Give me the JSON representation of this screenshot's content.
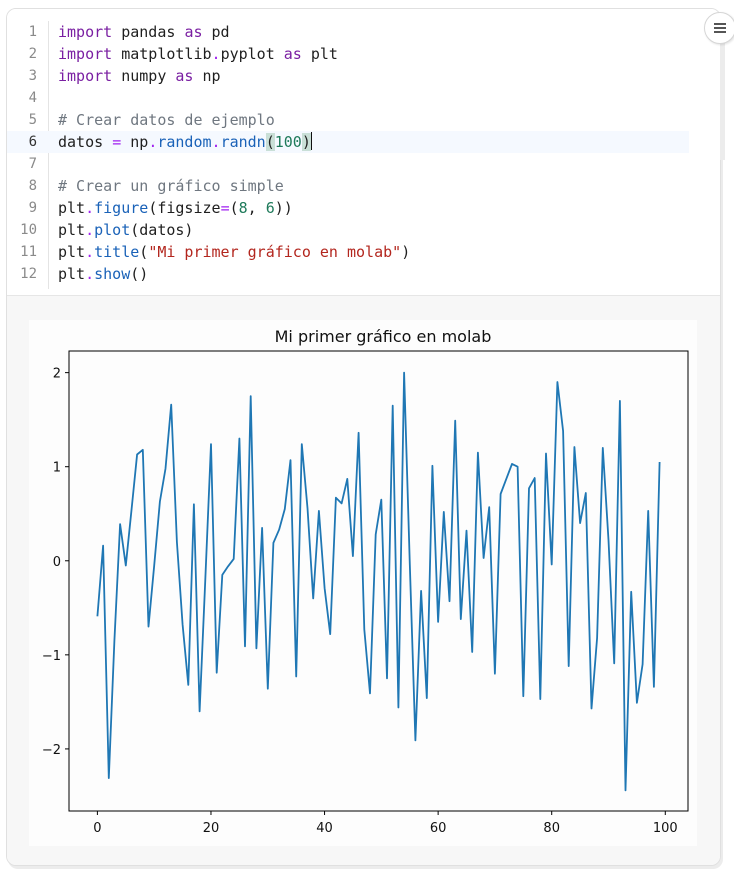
{
  "notebook": {
    "cell": {
      "menu_button": {
        "icon": "hamburger-menu-icon"
      },
      "active_line": 6,
      "lines": [
        {
          "n": "1",
          "tokens": [
            [
              "kw",
              "import"
            ],
            [
              "t",
              " pandas "
            ],
            [
              "kw",
              "as"
            ],
            [
              "t",
              " pd"
            ]
          ]
        },
        {
          "n": "2",
          "tokens": [
            [
              "kw",
              "import"
            ],
            [
              "t",
              " matplotlib"
            ],
            [
              "op",
              "."
            ],
            [
              "t",
              "pyplot "
            ],
            [
              "kw",
              "as"
            ],
            [
              "t",
              " plt"
            ]
          ]
        },
        {
          "n": "3",
          "tokens": [
            [
              "kw",
              "import"
            ],
            [
              "t",
              " numpy "
            ],
            [
              "kw",
              "as"
            ],
            [
              "t",
              " np"
            ]
          ]
        },
        {
          "n": "4",
          "tokens": []
        },
        {
          "n": "5",
          "tokens": [
            [
              "cm",
              "# Crear datos de ejemplo"
            ]
          ]
        },
        {
          "n": "6",
          "tokens": [
            [
              "t",
              "datos "
            ],
            [
              "op",
              "="
            ],
            [
              "t",
              " np"
            ],
            [
              "op",
              "."
            ],
            [
              "fn",
              "random"
            ],
            [
              "op",
              "."
            ],
            [
              "fn",
              "randn"
            ],
            [
              "bh",
              "("
            ],
            [
              "num",
              "100"
            ],
            [
              "bh",
              ")"
            ],
            [
              "cursor",
              ""
            ]
          ]
        },
        {
          "n": "7",
          "tokens": []
        },
        {
          "n": "8",
          "tokens": [
            [
              "cm",
              "# Crear un gráfico simple"
            ]
          ]
        },
        {
          "n": "9",
          "tokens": [
            [
              "t",
              "plt"
            ],
            [
              "op",
              "."
            ],
            [
              "fn",
              "figure"
            ],
            [
              "t",
              "(figsize"
            ],
            [
              "op",
              "="
            ],
            [
              "t",
              "("
            ],
            [
              "num",
              "8"
            ],
            [
              "t",
              ", "
            ],
            [
              "num",
              "6"
            ],
            [
              "t",
              "))"
            ]
          ]
        },
        {
          "n": "10",
          "tokens": [
            [
              "t",
              "plt"
            ],
            [
              "op",
              "."
            ],
            [
              "fn",
              "plot"
            ],
            [
              "t",
              "(datos)"
            ]
          ]
        },
        {
          "n": "11",
          "tokens": [
            [
              "t",
              "plt"
            ],
            [
              "op",
              "."
            ],
            [
              "fn",
              "title"
            ],
            [
              "t",
              "("
            ],
            [
              "str",
              "\"Mi primer gráfico en molab\""
            ],
            [
              "t",
              ")"
            ]
          ]
        },
        {
          "n": "12",
          "tokens": [
            [
              "t",
              "plt"
            ],
            [
              "op",
              "."
            ],
            [
              "fn",
              "show"
            ],
            [
              "t",
              "()"
            ]
          ]
        }
      ]
    },
    "output": {
      "figure_title": "Mi primer gráfico en molab"
    }
  },
  "colors": {
    "line": "#1f77b4",
    "keyword": "#7a1fa2",
    "function": "#1a62b8",
    "number": "#1e7a5a",
    "string": "#b3261e",
    "comment": "#6f7780",
    "active_line_bg": "#f5f9ff",
    "output_bg": "#f7f7f7"
  },
  "chart_data": {
    "type": "line",
    "title": "Mi primer gráfico en molab",
    "xlabel": "",
    "ylabel": "",
    "xlim": [
      -5,
      104
    ],
    "ylim": [
      -2.66,
      2.23
    ],
    "xticks": [
      0,
      20,
      40,
      60,
      80,
      100
    ],
    "xtick_labels": [
      "0",
      "20",
      "40",
      "60",
      "80",
      "100"
    ],
    "yticks": [
      -2,
      -1,
      0,
      1,
      2
    ],
    "ytick_labels": [
      "−2",
      "−1",
      "0",
      "1",
      "2"
    ],
    "grid": false,
    "legend": null,
    "series": [
      {
        "name": "datos",
        "color": "#1f77b4",
        "x_start": 0,
        "values": [
          -0.59,
          0.16,
          -2.31,
          -0.85,
          0.39,
          -0.05,
          0.54,
          1.13,
          1.18,
          -0.7,
          -0.05,
          0.63,
          0.98,
          1.66,
          0.2,
          -0.68,
          -1.32,
          0.6,
          -1.6,
          -0.2,
          1.24,
          -1.19,
          -0.15,
          -0.06,
          0.02,
          1.3,
          -0.91,
          1.75,
          -0.93,
          0.35,
          -1.36,
          0.19,
          0.33,
          0.55,
          1.07,
          -1.23,
          1.24,
          0.56,
          -0.4,
          0.53,
          -0.29,
          -0.78,
          0.67,
          0.61,
          0.87,
          0.05,
          1.36,
          -0.73,
          -1.41,
          0.28,
          0.65,
          -1.25,
          1.65,
          -1.56,
          2.0,
          0.0,
          -1.91,
          -0.32,
          -1.46,
          1.01,
          -0.65,
          0.52,
          -0.43,
          1.49,
          -0.62,
          0.32,
          -0.97,
          1.15,
          0.03,
          0.57,
          -1.2,
          0.71,
          0.87,
          1.03,
          1.0,
          -1.44,
          0.77,
          0.88,
          -1.47,
          1.14,
          -0.04,
          1.9,
          1.38,
          -1.12,
          1.21,
          0.4,
          0.72,
          -1.57,
          -0.82,
          1.2,
          0.22,
          -1.09,
          1.7,
          -2.44,
          -0.33,
          -1.51,
          -1.1,
          0.53,
          -1.34,
          1.05
        ]
      }
    ]
  }
}
